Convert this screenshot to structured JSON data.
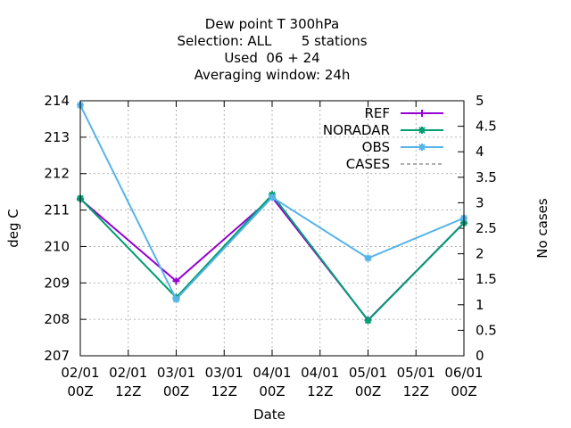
{
  "chart_data": {
    "type": "line",
    "title_lines": [
      "Dew point T 300hPa",
      "Selection: ALL       5 stations",
      "Used  06 + 24",
      "Averaging window: 24h"
    ],
    "xlabel": "Date",
    "ylabel": "deg C",
    "y2label": "No cases",
    "x_ticks": [
      [
        "02/01",
        "00Z"
      ],
      [
        "02/01",
        "12Z"
      ],
      [
        "03/01",
        "00Z"
      ],
      [
        "03/01",
        "12Z"
      ],
      [
        "04/01",
        "00Z"
      ],
      [
        "04/01",
        "12Z"
      ],
      [
        "05/01",
        "00Z"
      ],
      [
        "05/01",
        "12Z"
      ],
      [
        "06/01",
        "00Z"
      ]
    ],
    "x_range": [
      0,
      96
    ],
    "x_hours": [
      0,
      24,
      48,
      72,
      96
    ],
    "ylim": [
      207,
      214
    ],
    "y_ticks": [
      207,
      208,
      209,
      210,
      211,
      212,
      213,
      214
    ],
    "y2lim": [
      0,
      5
    ],
    "y2_ticks": [
      "0",
      "0.5",
      "1",
      "1.5",
      "2",
      "2.5",
      "3",
      "3.5",
      "4",
      "4.5",
      "5"
    ],
    "grid": true,
    "legend_position": "top-right",
    "series": [
      {
        "name": "REF",
        "color": "#9400d3",
        "dashed": false,
        "marker": "plus",
        "values": [
          211.3,
          209.05,
          211.35,
          207.98,
          210.65
        ]
      },
      {
        "name": "NORADAR",
        "color": "#009e73",
        "dashed": false,
        "marker": "star",
        "values": [
          211.32,
          208.6,
          211.42,
          207.97,
          210.65
        ]
      },
      {
        "name": "OBS",
        "color": "#56b4e9",
        "dashed": false,
        "marker": "star",
        "values": [
          213.88,
          208.55,
          211.35,
          209.68,
          210.78
        ]
      },
      {
        "name": "CASES",
        "color": "#808080",
        "dashed": true,
        "marker": "none",
        "values": []
      }
    ]
  }
}
